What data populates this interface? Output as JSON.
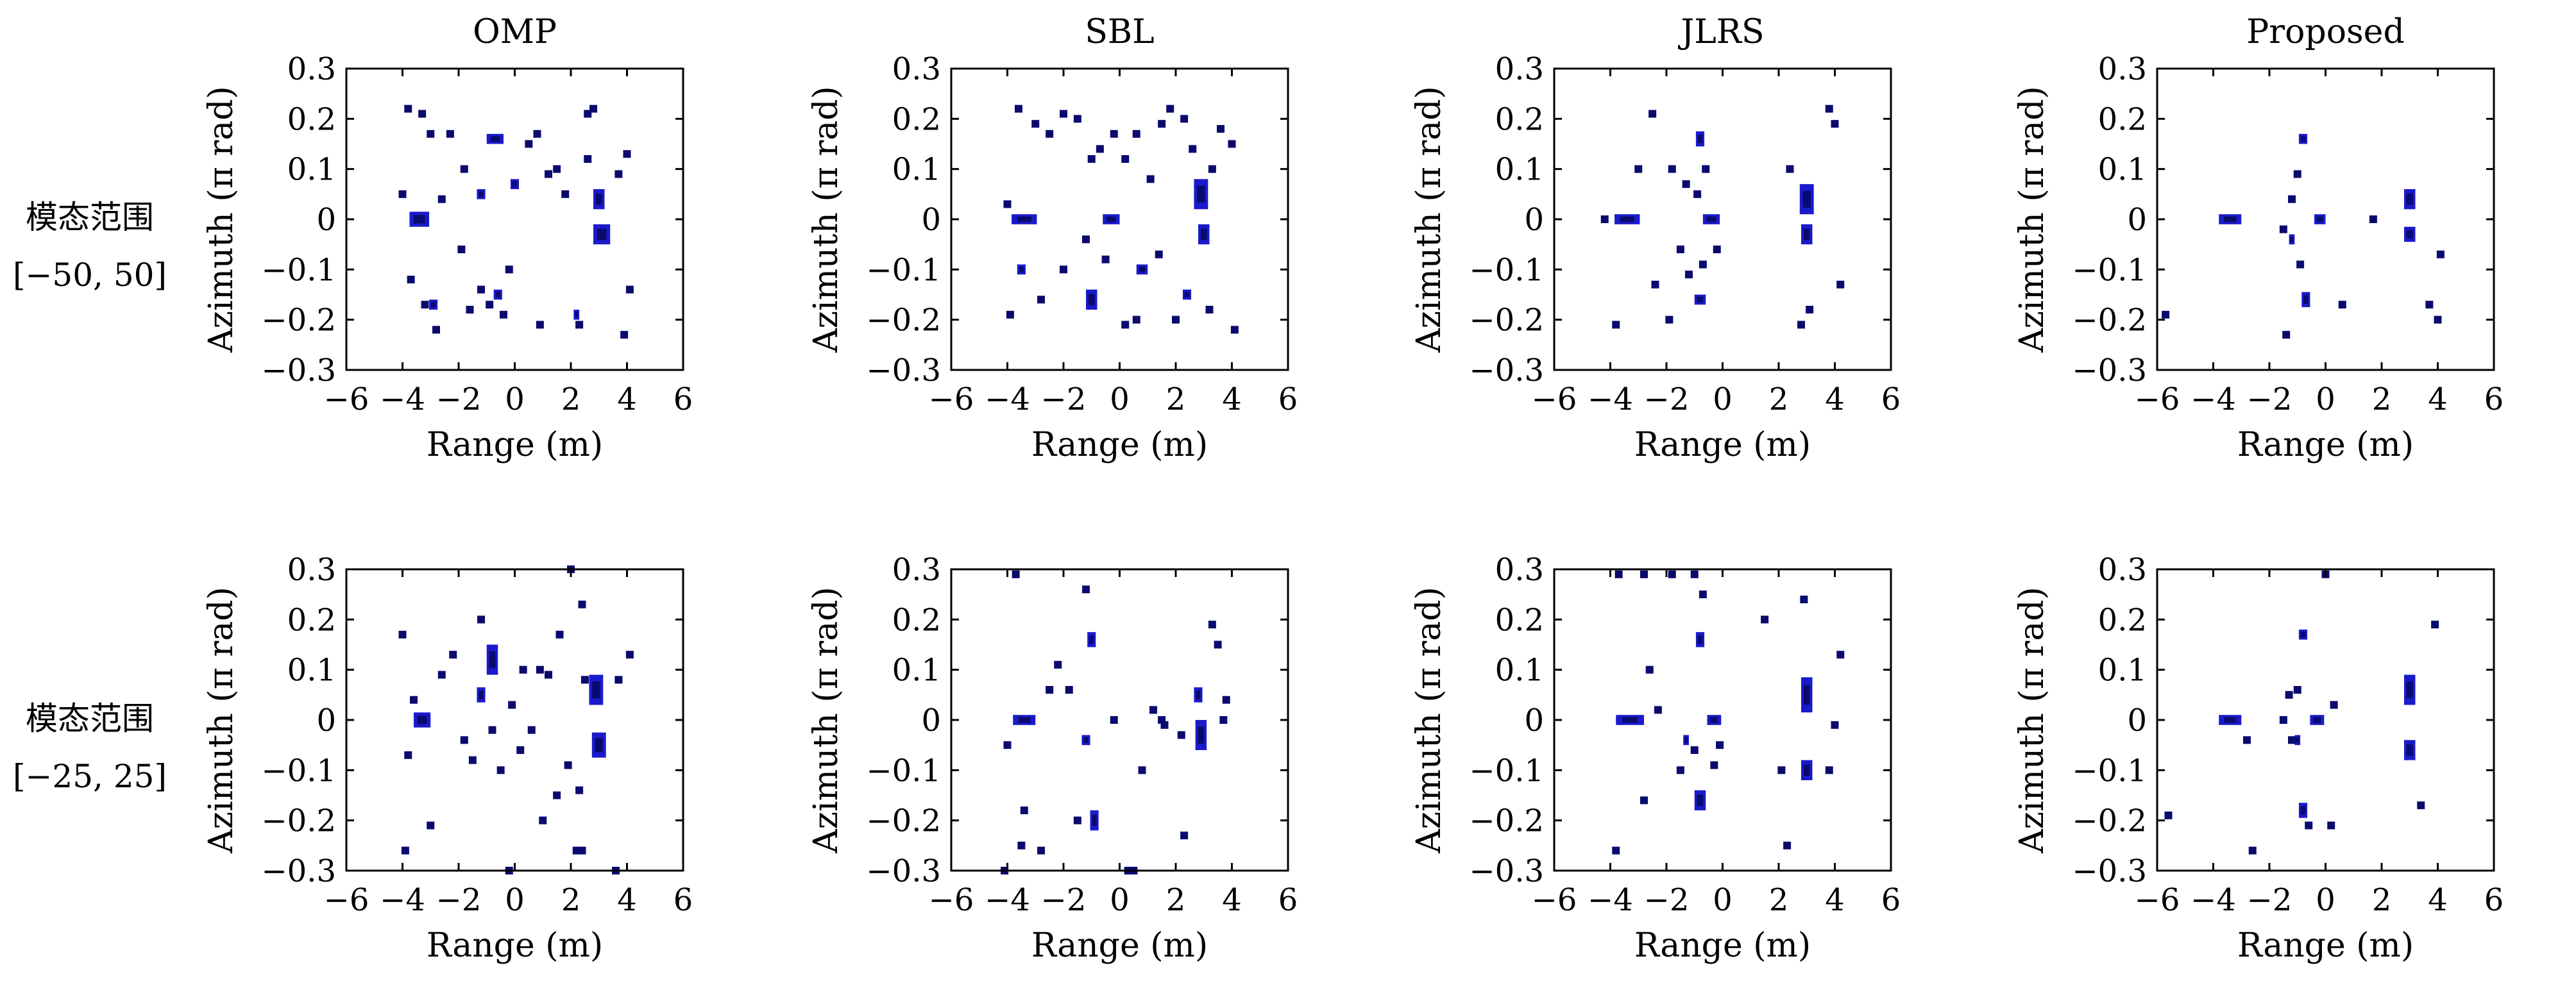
{
  "row_labels": [
    {
      "line1": "模态范围",
      "line2": "[−50, 50]"
    },
    {
      "line1": "模态范围",
      "line2": "[−25, 25]"
    }
  ],
  "colors": {
    "target": "#1a1acc",
    "core": "#0a0a6e",
    "edge": "#4a6cff",
    "frame": "#000000"
  },
  "chart_data": [
    {
      "type": "heatmap",
      "title": "OMP",
      "xlabel": "Range (m)",
      "ylabel": "Azimuth (π rad)",
      "xlim": [
        -6,
        6
      ],
      "ylim": [
        -0.3,
        0.3
      ],
      "xticks": [
        "−6",
        "−4",
        "−2",
        "0",
        "2",
        "4",
        "6"
      ],
      "yticks": [
        "0.3",
        "0.2",
        "0.1",
        "0",
        "−0.1",
        "−0.2",
        "−0.3"
      ],
      "blobs": [
        [
          -3.4,
          0,
          0.7,
          0.03
        ],
        [
          -0.7,
          0.16,
          0.6,
          0.02
        ],
        [
          3.0,
          0.04,
          0.4,
          0.04
        ],
        [
          3.1,
          -0.03,
          0.6,
          0.04
        ],
        [
          0.0,
          0.07,
          0.3,
          0.02
        ],
        [
          -1.2,
          0.05,
          0.3,
          0.02
        ],
        [
          -2.9,
          -0.17,
          0.3,
          0.02
        ],
        [
          2.2,
          -0.19,
          0.2,
          0.02
        ],
        [
          -0.6,
          -0.15,
          0.3,
          0.02
        ]
      ],
      "dots": [
        [
          -3.8,
          0.22
        ],
        [
          -3.3,
          0.21
        ],
        [
          -3.0,
          0.17
        ],
        [
          -3.2,
          -0.17
        ],
        [
          -2.6,
          0.04
        ],
        [
          -2.3,
          0.17
        ],
        [
          -1.9,
          -0.06
        ],
        [
          -1.6,
          -0.18
        ],
        [
          -1.2,
          -0.14
        ],
        [
          -0.9,
          -0.17
        ],
        [
          -0.4,
          -0.19
        ],
        [
          0.5,
          0.15
        ],
        [
          0.8,
          0.17
        ],
        [
          0.9,
          -0.21
        ],
        [
          1.2,
          0.09
        ],
        [
          1.5,
          0.1
        ],
        [
          2.3,
          -0.21
        ],
        [
          2.6,
          0.21
        ],
        [
          2.8,
          0.22
        ],
        [
          3.7,
          0.09
        ],
        [
          3.9,
          -0.23
        ],
        [
          4.0,
          0.13
        ],
        [
          4.1,
          -0.14
        ],
        [
          -4.0,
          0.05
        ],
        [
          -3.7,
          -0.12
        ],
        [
          -2.8,
          -0.22
        ],
        [
          -1.8,
          0.1
        ],
        [
          1.8,
          0.05
        ],
        [
          2.6,
          0.12
        ],
        [
          -0.2,
          -0.1
        ]
      ]
    },
    {
      "type": "heatmap",
      "title": "SBL",
      "xlabel": "Range (m)",
      "ylabel": "Azimuth (π rad)",
      "xlim": [
        -6,
        6
      ],
      "ylim": [
        -0.3,
        0.3
      ],
      "xticks": [
        "−6",
        "−4",
        "−2",
        "0",
        "2",
        "4",
        "6"
      ],
      "yticks": [
        "0.3",
        "0.2",
        "0.1",
        "0",
        "−0.1",
        "−0.2",
        "−0.3"
      ],
      "blobs": [
        [
          -3.4,
          0,
          0.9,
          0.02
        ],
        [
          -0.3,
          0,
          0.6,
          0.02
        ],
        [
          2.9,
          0.05,
          0.5,
          0.06
        ],
        [
          3.0,
          -0.03,
          0.4,
          0.04
        ],
        [
          -1.0,
          -0.16,
          0.4,
          0.04
        ],
        [
          0.8,
          -0.1,
          0.4,
          0.02
        ],
        [
          -3.5,
          -0.1,
          0.3,
          0.02
        ],
        [
          2.4,
          -0.15,
          0.3,
          0.02
        ]
      ],
      "dots": [
        [
          -3.6,
          0.22
        ],
        [
          -3.0,
          0.19
        ],
        [
          -2.5,
          0.17
        ],
        [
          -2.0,
          0.21
        ],
        [
          -1.5,
          0.2
        ],
        [
          -1.0,
          0.12
        ],
        [
          -0.7,
          0.14
        ],
        [
          -0.2,
          0.17
        ],
        [
          0.2,
          0.12
        ],
        [
          0.6,
          0.17
        ],
        [
          1.1,
          0.08
        ],
        [
          1.5,
          0.19
        ],
        [
          1.8,
          0.22
        ],
        [
          2.3,
          0.2
        ],
        [
          2.6,
          0.14
        ],
        [
          3.3,
          0.1
        ],
        [
          3.6,
          0.18
        ],
        [
          -4.0,
          0.03
        ],
        [
          -2.8,
          -0.16
        ],
        [
          -2.0,
          -0.1
        ],
        [
          -1.2,
          -0.04
        ],
        [
          -0.5,
          -0.08
        ],
        [
          0.2,
          -0.21
        ],
        [
          0.6,
          -0.2
        ],
        [
          1.4,
          -0.07
        ],
        [
          2.0,
          -0.2
        ],
        [
          3.2,
          -0.18
        ],
        [
          4.0,
          0.15
        ],
        [
          4.1,
          -0.22
        ],
        [
          -3.9,
          -0.19
        ]
      ]
    },
    {
      "type": "heatmap",
      "title": "JLRS",
      "xlabel": "Range (m)",
      "ylabel": "Azimuth (π rad)",
      "xlim": [
        -6,
        6
      ],
      "ylim": [
        -0.3,
        0.3
      ],
      "xticks": [
        "−6",
        "−4",
        "−2",
        "0",
        "2",
        "4",
        "6"
      ],
      "yticks": [
        "0.3",
        "0.2",
        "0.1",
        "0",
        "−0.1",
        "−0.2",
        "−0.3"
      ],
      "blobs": [
        [
          -3.4,
          0,
          0.9,
          0.02
        ],
        [
          -0.8,
          0.16,
          0.3,
          0.03
        ],
        [
          -0.8,
          -0.16,
          0.4,
          0.02
        ],
        [
          -0.4,
          0,
          0.6,
          0.02
        ],
        [
          3.0,
          0.04,
          0.5,
          0.06
        ],
        [
          3.0,
          -0.03,
          0.4,
          0.04
        ]
      ],
      "dots": [
        [
          -3.0,
          0.1
        ],
        [
          -2.5,
          0.21
        ],
        [
          -1.8,
          0.1
        ],
        [
          -1.3,
          0.07
        ],
        [
          -0.9,
          0.05
        ],
        [
          -0.6,
          0.1
        ],
        [
          -1.5,
          -0.06
        ],
        [
          -1.2,
          -0.11
        ],
        [
          -0.7,
          -0.09
        ],
        [
          -0.2,
          -0.06
        ],
        [
          -3.8,
          -0.21
        ],
        [
          -2.4,
          -0.13
        ],
        [
          2.8,
          -0.21
        ],
        [
          3.1,
          -0.18
        ],
        [
          3.8,
          0.22
        ],
        [
          4.0,
          0.19
        ],
        [
          4.2,
          -0.13
        ],
        [
          2.4,
          0.1
        ],
        [
          -4.2,
          0.0
        ],
        [
          -1.9,
          -0.2
        ]
      ]
    },
    {
      "type": "heatmap",
      "title": "Proposed",
      "xlabel": "Range (m)",
      "ylabel": "Azimuth (π rad)",
      "xlim": [
        -6,
        6
      ],
      "ylim": [
        -0.3,
        0.3
      ],
      "xticks": [
        "−6",
        "−4",
        "−2",
        "0",
        "2",
        "4",
        "6"
      ],
      "yticks": [
        "0.3",
        "0.2",
        "0.1",
        "0",
        "−0.1",
        "−0.2",
        "−0.3"
      ],
      "blobs": [
        [
          -3.4,
          0,
          0.8,
          0.02
        ],
        [
          -0.8,
          0.16,
          0.3,
          0.02
        ],
        [
          -0.7,
          -0.16,
          0.3,
          0.03
        ],
        [
          -0.2,
          0,
          0.4,
          0.02
        ],
        [
          3.0,
          0.04,
          0.4,
          0.04
        ],
        [
          3.0,
          -0.03,
          0.4,
          0.03
        ],
        [
          -1.2,
          -0.04,
          0.2,
          0.02
        ]
      ],
      "dots": [
        [
          -1.0,
          0.09
        ],
        [
          -1.2,
          0.04
        ],
        [
          -1.5,
          -0.02
        ],
        [
          -0.9,
          -0.09
        ],
        [
          1.7,
          0
        ],
        [
          4.1,
          -0.07
        ],
        [
          -5.7,
          -0.19
        ],
        [
          -1.4,
          -0.23
        ],
        [
          0.6,
          -0.17
        ],
        [
          3.7,
          -0.17
        ],
        [
          4.0,
          -0.2
        ]
      ]
    },
    {
      "type": "heatmap",
      "title": "",
      "xlabel": "Range (m)",
      "ylabel": "Azimuth (π rad)",
      "xlim": [
        -6,
        6
      ],
      "ylim": [
        -0.3,
        0.3
      ],
      "xticks": [
        "−6",
        "−4",
        "−2",
        "0",
        "2",
        "4",
        "6"
      ],
      "yticks": [
        "0.3",
        "0.2",
        "0.1",
        "0",
        "−0.1",
        "−0.2",
        "−0.3"
      ],
      "blobs": [
        [
          -3.3,
          0,
          0.6,
          0.03
        ],
        [
          -0.8,
          0.12,
          0.4,
          0.06
        ],
        [
          2.9,
          0.06,
          0.5,
          0.06
        ],
        [
          3.0,
          -0.05,
          0.5,
          0.05
        ],
        [
          -1.2,
          0.05,
          0.3,
          0.03
        ]
      ],
      "dots": [
        [
          -4.0,
          0.17
        ],
        [
          -3.0,
          -0.21
        ],
        [
          -3.6,
          0.04
        ],
        [
          -2.6,
          0.09
        ],
        [
          -2.2,
          0.13
        ],
        [
          -1.5,
          -0.08
        ],
        [
          -1.2,
          0.2
        ],
        [
          -0.8,
          -0.02
        ],
        [
          -0.5,
          -0.1
        ],
        [
          -0.1,
          0.03
        ],
        [
          0.3,
          0.1
        ],
        [
          0.6,
          -0.02
        ],
        [
          0.9,
          0.1
        ],
        [
          1.2,
          0.09
        ],
        [
          1.6,
          0.17
        ],
        [
          1.0,
          -0.2
        ],
        [
          1.9,
          -0.09
        ],
        [
          2.0,
          0.3
        ],
        [
          2.3,
          -0.14
        ],
        [
          2.5,
          0.08
        ],
        [
          2.2,
          -0.26
        ],
        [
          2.4,
          -0.26
        ],
        [
          3.6,
          -0.3
        ],
        [
          3.7,
          0.08
        ],
        [
          4.1,
          0.13
        ],
        [
          -3.9,
          -0.26
        ],
        [
          -3.8,
          -0.07
        ],
        [
          1.5,
          -0.15
        ],
        [
          -0.2,
          -0.3
        ],
        [
          0.2,
          -0.06
        ],
        [
          -1.8,
          -0.04
        ],
        [
          2.4,
          0.23
        ]
      ]
    },
    {
      "type": "heatmap",
      "title": "",
      "xlabel": "Range (m)",
      "ylabel": "Azimuth (π rad)",
      "xlim": [
        -6,
        6
      ],
      "ylim": [
        -0.3,
        0.3
      ],
      "xticks": [
        "−6",
        "−4",
        "−2",
        "0",
        "2",
        "4",
        "6"
      ],
      "yticks": [
        "0.3",
        "0.2",
        "0.1",
        "0",
        "−0.1",
        "−0.2",
        "−0.3"
      ],
      "blobs": [
        [
          -3.4,
          0,
          0.8,
          0.02
        ],
        [
          -0.9,
          -0.2,
          0.3,
          0.04
        ],
        [
          2.9,
          -0.03,
          0.4,
          0.06
        ],
        [
          2.8,
          0.05,
          0.3,
          0.03
        ],
        [
          -1.2,
          -0.04,
          0.3,
          0.02
        ],
        [
          -1.0,
          0.16,
          0.3,
          0.03
        ]
      ],
      "dots": [
        [
          -4.0,
          -0.05
        ],
        [
          -3.4,
          -0.18
        ],
        [
          -3.5,
          -0.25
        ],
        [
          -2.8,
          -0.26
        ],
        [
          -2.5,
          0.06
        ],
        [
          -2.2,
          0.11
        ],
        [
          -1.8,
          0.06
        ],
        [
          -1.5,
          -0.2
        ],
        [
          -0.2,
          0
        ],
        [
          0.3,
          -0.3
        ],
        [
          0.8,
          -0.1
        ],
        [
          1.2,
          0.02
        ],
        [
          1.5,
          0
        ],
        [
          1.6,
          -0.01
        ],
        [
          2.2,
          -0.03
        ],
        [
          2.3,
          -0.23
        ],
        [
          3.3,
          0.19
        ],
        [
          3.5,
          0.15
        ],
        [
          3.7,
          0.0
        ],
        [
          3.8,
          0.04
        ],
        [
          -3.7,
          0.29
        ],
        [
          -1.2,
          0.26
        ],
        [
          0.5,
          -0.3
        ],
        [
          -4.1,
          -0.3
        ]
      ]
    },
    {
      "type": "heatmap",
      "title": "",
      "xlabel": "Range (m)",
      "ylabel": "Azimuth (π rad)",
      "xlim": [
        -6,
        6
      ],
      "ylim": [
        -0.3,
        0.3
      ],
      "xticks": [
        "−6",
        "−4",
        "−2",
        "0",
        "2",
        "4",
        "6"
      ],
      "yticks": [
        "0.3",
        "0.2",
        "0.1",
        "0",
        "−0.1",
        "−0.2",
        "−0.3"
      ],
      "blobs": [
        [
          -3.3,
          0,
          1.0,
          0.02
        ],
        [
          -0.8,
          0.16,
          0.3,
          0.03
        ],
        [
          -0.8,
          -0.16,
          0.4,
          0.04
        ],
        [
          -0.3,
          0,
          0.5,
          0.02
        ],
        [
          3.0,
          0.05,
          0.4,
          0.07
        ],
        [
          3.0,
          -0.1,
          0.4,
          0.04
        ],
        [
          -1.3,
          -0.04,
          0.2,
          0.02
        ]
      ],
      "dots": [
        [
          -3.7,
          0.29
        ],
        [
          -2.8,
          0.29
        ],
        [
          -2.6,
          0.1
        ],
        [
          -2.3,
          0.02
        ],
        [
          -1.8,
          0.29
        ],
        [
          -1.0,
          0.29
        ],
        [
          -0.7,
          0.25
        ],
        [
          -0.3,
          -0.09
        ],
        [
          1.5,
          0.2
        ],
        [
          2.1,
          -0.1
        ],
        [
          2.3,
          -0.25
        ],
        [
          3.8,
          -0.1
        ],
        [
          4.0,
          -0.01
        ],
        [
          4.2,
          0.13
        ],
        [
          -3.8,
          -0.26
        ],
        [
          -2.8,
          -0.16
        ],
        [
          -1.0,
          -0.06
        ],
        [
          -1.5,
          -0.1
        ],
        [
          -0.1,
          -0.05
        ],
        [
          2.9,
          0.24
        ]
      ]
    },
    {
      "type": "heatmap",
      "title": "",
      "xlabel": "Range (m)",
      "ylabel": "Azimuth (π rad)",
      "xlim": [
        -6,
        6
      ],
      "ylim": [
        -0.3,
        0.3
      ],
      "xticks": [
        "−6",
        "−4",
        "−2",
        "0",
        "2",
        "4",
        "6"
      ],
      "yticks": [
        "0.3",
        "0.2",
        "0.1",
        "0",
        "−0.1",
        "−0.2",
        "−0.3"
      ],
      "blobs": [
        [
          -3.4,
          0,
          0.8,
          0.02
        ],
        [
          -0.8,
          0.17,
          0.3,
          0.02
        ],
        [
          -0.8,
          -0.18,
          0.3,
          0.03
        ],
        [
          -0.3,
          0,
          0.5,
          0.02
        ],
        [
          3.0,
          0.06,
          0.4,
          0.06
        ],
        [
          3.0,
          -0.06,
          0.4,
          0.04
        ],
        [
          -1.0,
          -0.04,
          0.2,
          0.02
        ]
      ],
      "dots": [
        [
          -1.3,
          0.05
        ],
        [
          -1.2,
          -0.04
        ],
        [
          -1.5,
          0
        ],
        [
          0.3,
          0.03
        ],
        [
          -2.8,
          -0.04
        ],
        [
          -2.6,
          -0.26
        ],
        [
          -0.6,
          -0.21
        ],
        [
          0.2,
          -0.21
        ],
        [
          -5.6,
          -0.19
        ],
        [
          0.0,
          0.29
        ],
        [
          3.4,
          -0.17
        ],
        [
          3.9,
          0.19
        ],
        [
          -1.0,
          0.06
        ]
      ]
    }
  ]
}
